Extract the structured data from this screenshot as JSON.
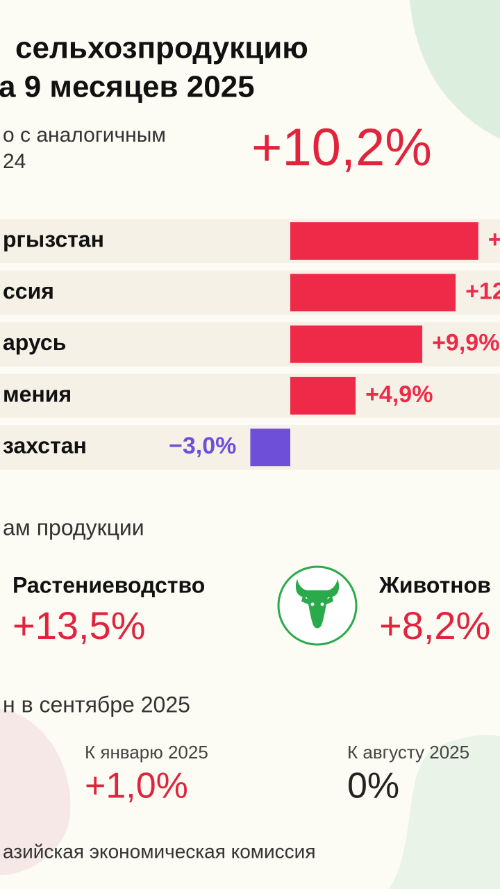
{
  "header": {
    "title_lines": [
      "сельхозпродукцию",
      "а 9 месяцев 2025"
    ],
    "subtitle_lines": [
      "о с аналогичным",
      "24"
    ],
    "total": "+10,2%"
  },
  "chart_data": {
    "type": "bar",
    "orientation": "horizontal",
    "categories": [
      "ргызстан",
      "ссия",
      "арусь",
      "мения",
      "захстан"
    ],
    "values": [
      14.1,
      12.4,
      9.9,
      4.9,
      -3.0
    ],
    "value_labels": [
      "+",
      "+12",
      "+9,9%",
      "+4,9%",
      "−3,0%"
    ],
    "color": "#ee2a48",
    "negative_color": "#6e4fd8"
  },
  "products": {
    "heading": "ам продукции",
    "items": [
      {
        "name": "Растениеводство",
        "value": "+13,5%"
      },
      {
        "name": "Животнов",
        "value": "+8,2%"
      }
    ]
  },
  "prices": {
    "heading": "н в сентябре 2025",
    "items": [
      {
        "label": "К январю 2025",
        "value": "+1,0%"
      },
      {
        "label": "К августу 2025",
        "value": "0%"
      }
    ]
  },
  "footer": "азийская экономическая комиссия"
}
